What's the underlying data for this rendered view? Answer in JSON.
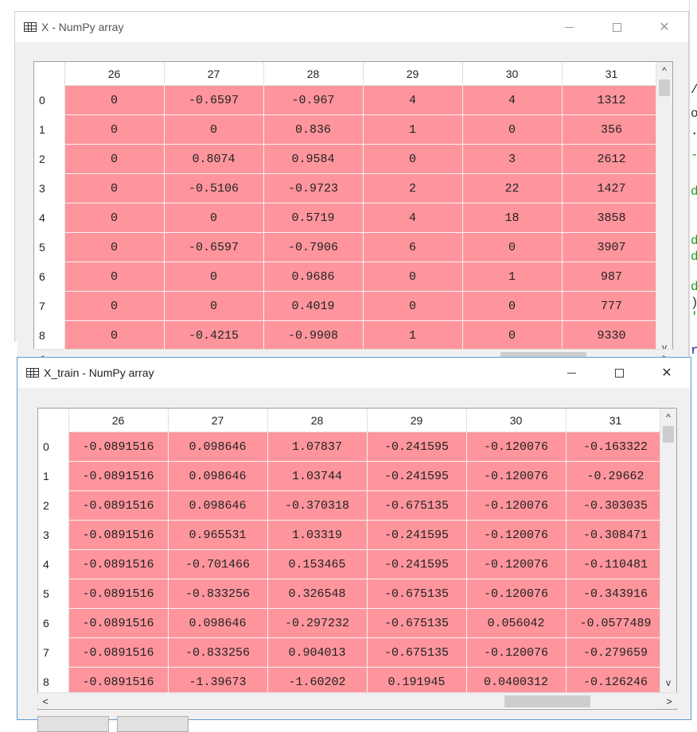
{
  "background_editor": {
    "fragments": [
      "/.",
      "o",
      ".",
      "-",
      "d",
      "d",
      "d",
      "d",
      ")",
      "'",
      "r"
    ]
  },
  "window_top": {
    "title": "X - NumPy array",
    "icon": "grid-icon",
    "controls": {
      "minimize": "—",
      "maximize": "□",
      "close": "✕"
    },
    "columns": [
      "26",
      "27",
      "28",
      "29",
      "30",
      "31"
    ],
    "rows": [
      {
        "index": "0",
        "values": [
          "0",
          "-0.6597",
          "-0.967",
          "4",
          "4",
          "1312"
        ]
      },
      {
        "index": "1",
        "values": [
          "0",
          "0",
          "0.836",
          "1",
          "0",
          "356"
        ]
      },
      {
        "index": "2",
        "values": [
          "0",
          "0.8074",
          "0.9584",
          "0",
          "3",
          "2612"
        ]
      },
      {
        "index": "3",
        "values": [
          "0",
          "-0.5106",
          "-0.9723",
          "2",
          "22",
          "1427"
        ]
      },
      {
        "index": "4",
        "values": [
          "0",
          "0",
          "0.5719",
          "4",
          "18",
          "3858"
        ]
      },
      {
        "index": "5",
        "values": [
          "0",
          "-0.6597",
          "-0.7906",
          "6",
          "0",
          "3907"
        ]
      },
      {
        "index": "6",
        "values": [
          "0",
          "0",
          "0.9686",
          "0",
          "1",
          "987"
        ]
      },
      {
        "index": "7",
        "values": [
          "0",
          "0",
          "0.4019",
          "0",
          "0",
          "777"
        ]
      },
      {
        "index": "8",
        "values": [
          "0",
          "-0.4215",
          "-0.9908",
          "1",
          "0",
          "9330"
        ]
      }
    ]
  },
  "window_bottom": {
    "title": "X_train - NumPy array",
    "icon": "grid-icon",
    "controls": {
      "minimize": "—",
      "maximize": "□",
      "close": "✕"
    },
    "columns": [
      "26",
      "27",
      "28",
      "29",
      "30",
      "31"
    ],
    "rows": [
      {
        "index": "0",
        "values": [
          "-0.0891516",
          "0.098646",
          "1.07837",
          "-0.241595",
          "-0.120076",
          "-0.163322"
        ]
      },
      {
        "index": "1",
        "values": [
          "-0.0891516",
          "0.098646",
          "1.03744",
          "-0.241595",
          "-0.120076",
          "-0.29662"
        ]
      },
      {
        "index": "2",
        "values": [
          "-0.0891516",
          "0.098646",
          "-0.370318",
          "-0.675135",
          "-0.120076",
          "-0.303035"
        ]
      },
      {
        "index": "3",
        "values": [
          "-0.0891516",
          "0.965531",
          "1.03319",
          "-0.241595",
          "-0.120076",
          "-0.308471"
        ]
      },
      {
        "index": "4",
        "values": [
          "-0.0891516",
          "-0.701466",
          "0.153465",
          "-0.241595",
          "-0.120076",
          "-0.110481"
        ]
      },
      {
        "index": "5",
        "values": [
          "-0.0891516",
          "-0.833256",
          "0.326548",
          "-0.675135",
          "-0.120076",
          "-0.343916"
        ]
      },
      {
        "index": "6",
        "values": [
          "-0.0891516",
          "0.098646",
          "-0.297232",
          "-0.675135",
          "0.056042",
          "-0.0577489"
        ]
      },
      {
        "index": "7",
        "values": [
          "-0.0891516",
          "-0.833256",
          "0.904013",
          "-0.675135",
          "-0.120076",
          "-0.279659"
        ]
      },
      {
        "index": "8",
        "values": [
          "-0.0891516",
          "-1.39673",
          "-1.60202",
          "0.191945",
          "0.0400312",
          "-0.126246"
        ]
      }
    ]
  },
  "scroll": {
    "up": "^",
    "down": "v",
    "left": "<",
    "right": ">"
  },
  "colors": {
    "cell_bg": "#ff959c",
    "window_bg": "#f0f0f0",
    "active_border": "#5b9bd5"
  }
}
